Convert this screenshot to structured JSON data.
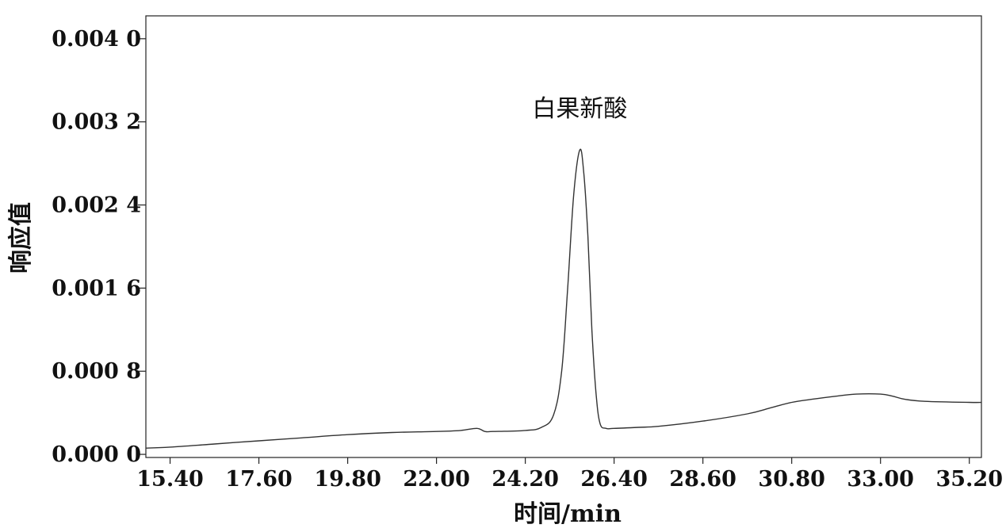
{
  "chart_data": {
    "type": "line",
    "title": "",
    "xlabel": "时间/min",
    "ylabel": "响应值",
    "xlim": [
      14.8,
      35.5
    ],
    "ylim": [
      -3e-05,
      0.00422
    ],
    "x_ticks": [
      15.4,
      17.6,
      19.8,
      22.0,
      24.2,
      26.4,
      28.6,
      30.8,
      33.0,
      35.2
    ],
    "x_tick_labels": [
      "15.40",
      "17.60",
      "19.80",
      "22.00",
      "24.20",
      "26.40",
      "28.60",
      "30.80",
      "33.00",
      "35.20"
    ],
    "y_ticks": [
      0.0,
      0.0008,
      0.0016,
      0.0024,
      0.0032,
      0.004
    ],
    "y_tick_labels": [
      "0.000 0",
      "0.000 8",
      "0.001 6",
      "0.002 4",
      "0.003 2",
      "0.004 0"
    ],
    "grid": false,
    "series": [
      {
        "x": [
          14.8,
          15.4,
          16.5,
          17.6,
          18.7,
          19.8,
          20.9,
          22.0,
          22.6,
          23.0,
          23.2,
          23.4,
          24.2,
          24.6,
          24.9,
          25.1,
          25.25,
          25.4,
          25.55,
          25.65,
          25.75,
          25.85,
          25.95,
          26.05,
          26.2,
          26.4,
          27.0,
          27.5,
          28.6,
          29.7,
          30.3,
          30.8,
          31.3,
          31.9,
          32.4,
          33.0,
          33.3,
          33.6,
          34.1,
          35.2,
          35.5
        ],
        "y": [
          6e-05,
          7e-05,
          0.0001,
          0.00013,
          0.00016,
          0.00019,
          0.00021,
          0.00022,
          0.00023,
          0.00025,
          0.00022,
          0.00022,
          0.00023,
          0.00026,
          0.00038,
          0.0008,
          0.0016,
          0.0025,
          0.00293,
          0.0027,
          0.0021,
          0.0012,
          0.0006,
          0.0003,
          0.00025,
          0.00025,
          0.00026,
          0.00027,
          0.00032,
          0.00039,
          0.00045,
          0.0005,
          0.00053,
          0.00056,
          0.00058,
          0.00058,
          0.00056,
          0.00053,
          0.00051,
          0.0005,
          0.0005
        ]
      }
    ],
    "annotations": [
      {
        "text": "白果新酸",
        "x": 25.55,
        "y": 0.00325
      }
    ]
  }
}
